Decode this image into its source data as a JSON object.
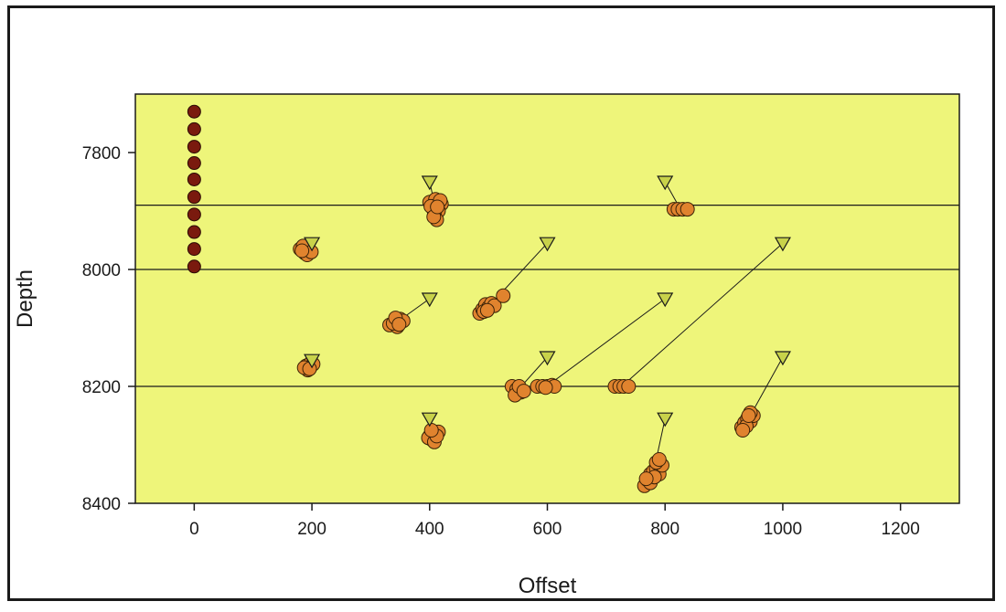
{
  "chart_data": {
    "type": "scatter",
    "title": "",
    "xlabel": "Offset",
    "ylabel": "Depth",
    "xlim": [
      -100,
      1300
    ],
    "ylim": [
      8400,
      7700
    ],
    "y_inverted": true,
    "x_ticks": [
      "0",
      "200",
      "400",
      "600",
      "800",
      "1000",
      "1200"
    ],
    "y_ticks": [
      "7800",
      "8000",
      "8200",
      "8400"
    ],
    "reference_lines_depth": [
      7890,
      8000,
      8200
    ],
    "plot_background": "#eef57a",
    "receivers": {
      "color": "#7a1a0e",
      "points": [
        [
          0,
          7730
        ],
        [
          0,
          7760
        ],
        [
          0,
          7790
        ],
        [
          0,
          7818
        ],
        [
          0,
          7846
        ],
        [
          0,
          7876
        ],
        [
          0,
          7906
        ],
        [
          0,
          7936
        ],
        [
          0,
          7965
        ],
        [
          0,
          7995
        ]
      ]
    },
    "sources": {
      "color": "#c8d24a",
      "points": [
        [
          200,
          7955
        ],
        [
          200,
          8155
        ],
        [
          400,
          7850
        ],
        [
          400,
          8050
        ],
        [
          400,
          8255
        ],
        [
          600,
          7955
        ],
        [
          600,
          8150
        ],
        [
          800,
          7850
        ],
        [
          800,
          8050
        ],
        [
          800,
          8255
        ],
        [
          1000,
          7955
        ],
        [
          1000,
          8150
        ]
      ]
    },
    "event_color": "#e0832e",
    "clusters": [
      {
        "from": [
          200,
          7955
        ],
        "points": [
          [
            180,
            7965
          ],
          [
            188,
            7972
          ],
          [
            195,
            7968
          ],
          [
            185,
            7960
          ],
          [
            192,
            7975
          ],
          [
            199,
            7970
          ],
          [
            183,
            7968
          ]
        ]
      },
      {
        "from": [
          200,
          8155
        ],
        "points": [
          [
            190,
            8165
          ],
          [
            198,
            8160
          ],
          [
            193,
            8172
          ],
          [
            202,
            8162
          ],
          [
            187,
            8168
          ],
          [
            196,
            8170
          ]
        ]
      },
      {
        "from": [
          400,
          7850
        ],
        "points": [
          [
            400,
            7885
          ],
          [
            410,
            7880
          ],
          [
            420,
            7888
          ],
          [
            405,
            7895
          ],
          [
            415,
            7900
          ],
          [
            408,
            7905
          ],
          [
            412,
            7915
          ],
          [
            402,
            7892
          ],
          [
            418,
            7882
          ],
          [
            407,
            7910
          ],
          [
            413,
            7893
          ]
        ]
      },
      {
        "from": [
          400,
          8050
        ],
        "points": [
          [
            332,
            8095
          ],
          [
            340,
            8090
          ],
          [
            350,
            8085
          ],
          [
            345,
            8098
          ],
          [
            338,
            8092
          ],
          [
            355,
            8088
          ],
          [
            342,
            8083
          ],
          [
            348,
            8094
          ]
        ]
      },
      {
        "from": [
          400,
          8255
        ],
        "points": [
          [
            400,
            8285
          ],
          [
            410,
            8280
          ],
          [
            405,
            8292
          ],
          [
            415,
            8278
          ],
          [
            398,
            8288
          ],
          [
            408,
            8295
          ],
          [
            412,
            8285
          ],
          [
            403,
            8275
          ]
        ]
      },
      {
        "from": [
          600,
          7955
        ],
        "points": [
          [
            485,
            8075
          ],
          [
            490,
            8068
          ],
          [
            495,
            8060
          ],
          [
            500,
            8065
          ],
          [
            505,
            8058
          ],
          [
            492,
            8072
          ],
          [
            510,
            8062
          ],
          [
            498,
            8070
          ],
          [
            525,
            8045
          ]
        ]
      },
      {
        "from": [
          600,
          8150
        ],
        "points": [
          [
            540,
            8200
          ],
          [
            548,
            8205
          ],
          [
            555,
            8210
          ],
          [
            545,
            8215
          ],
          [
            552,
            8200
          ],
          [
            560,
            8208
          ]
        ]
      },
      {
        "from": [
          800,
          8050
        ],
        "points": [
          [
            583,
            8200
          ],
          [
            592,
            8200
          ],
          [
            600,
            8200
          ],
          [
            608,
            8198
          ],
          [
            612,
            8200
          ],
          [
            597,
            8202
          ]
        ]
      },
      {
        "from": [
          1000,
          7955
        ],
        "points": [
          [
            715,
            8200
          ],
          [
            723,
            8200
          ],
          [
            730,
            8200
          ],
          [
            738,
            8200
          ]
        ]
      },
      {
        "from": [
          800,
          7850
        ],
        "points": [
          [
            815,
            7897
          ],
          [
            822,
            7897
          ],
          [
            830,
            7897
          ],
          [
            838,
            7897
          ]
        ]
      },
      {
        "from": [
          800,
          8255
        ],
        "points": [
          [
            765,
            8370
          ],
          [
            770,
            8360
          ],
          [
            775,
            8350
          ],
          [
            780,
            8345
          ],
          [
            785,
            8340
          ],
          [
            790,
            8350
          ],
          [
            795,
            8335
          ],
          [
            785,
            8330
          ],
          [
            775,
            8365
          ],
          [
            782,
            8355
          ],
          [
            790,
            8325
          ],
          [
            768,
            8358
          ]
        ]
      },
      {
        "from": [
          1000,
          8150
        ],
        "points": [
          [
            930,
            8270
          ],
          [
            935,
            8262
          ],
          [
            940,
            8255
          ],
          [
            945,
            8260
          ],
          [
            950,
            8250
          ],
          [
            938,
            8268
          ],
          [
            945,
            8245
          ],
          [
            932,
            8275
          ],
          [
            942,
            8250
          ]
        ]
      }
    ]
  }
}
